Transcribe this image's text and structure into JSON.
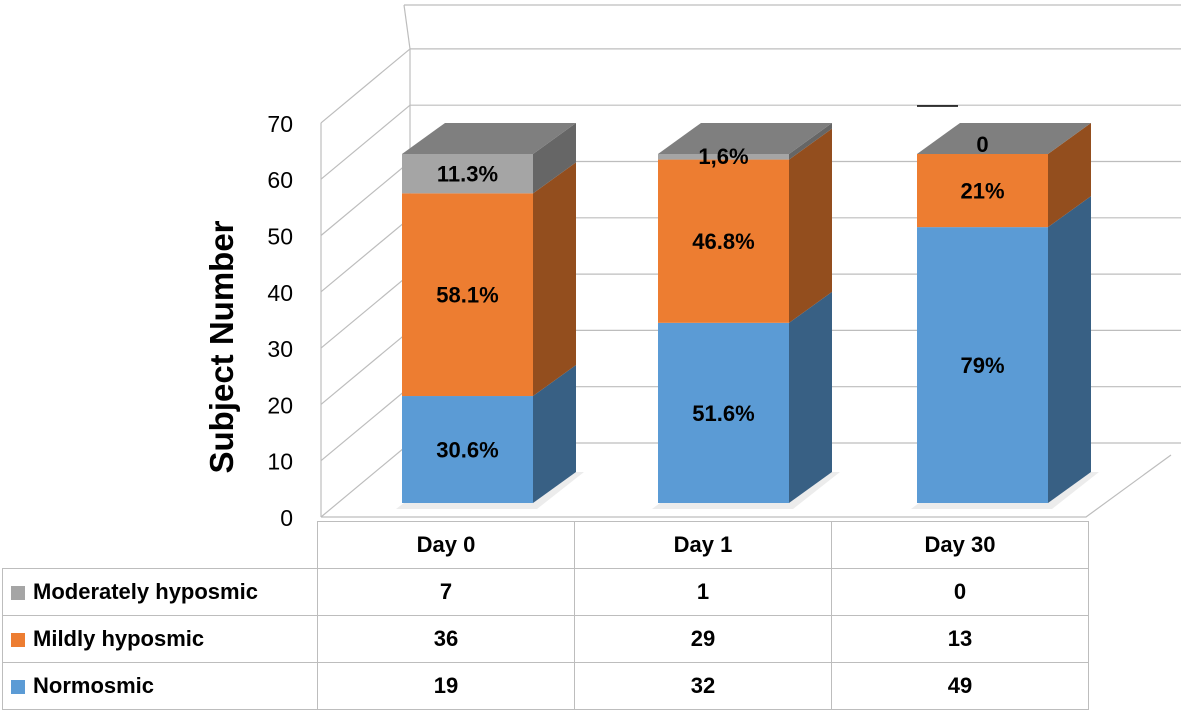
{
  "chart_data": {
    "type": "bar",
    "stacked": true,
    "style": "3d",
    "ylabel": "Subject Number",
    "ylim": [
      0,
      70
    ],
    "yticks": [
      0,
      10,
      20,
      30,
      40,
      50,
      60,
      70
    ],
    "grid": true,
    "legend_placement": "data-table-left",
    "categories": [
      "Day 0",
      "Day 1",
      "Day 30"
    ],
    "series": [
      {
        "name": "Normosmic",
        "color": "#5b9bd5",
        "values": [
          19,
          32,
          49
        ],
        "labels": [
          "30.6%",
          "51.6%",
          "79%"
        ]
      },
      {
        "name": "Mildly hyposmic",
        "color": "#ed7d31",
        "values": [
          36,
          29,
          13
        ],
        "labels": [
          "58.1%",
          "46.8%",
          "21%"
        ]
      },
      {
        "name": "Moderately hyposmic",
        "color": "#a5a5a5",
        "values": [
          7,
          1,
          0
        ],
        "labels": [
          "11.3%",
          "1,6%",
          "0"
        ]
      }
    ]
  }
}
